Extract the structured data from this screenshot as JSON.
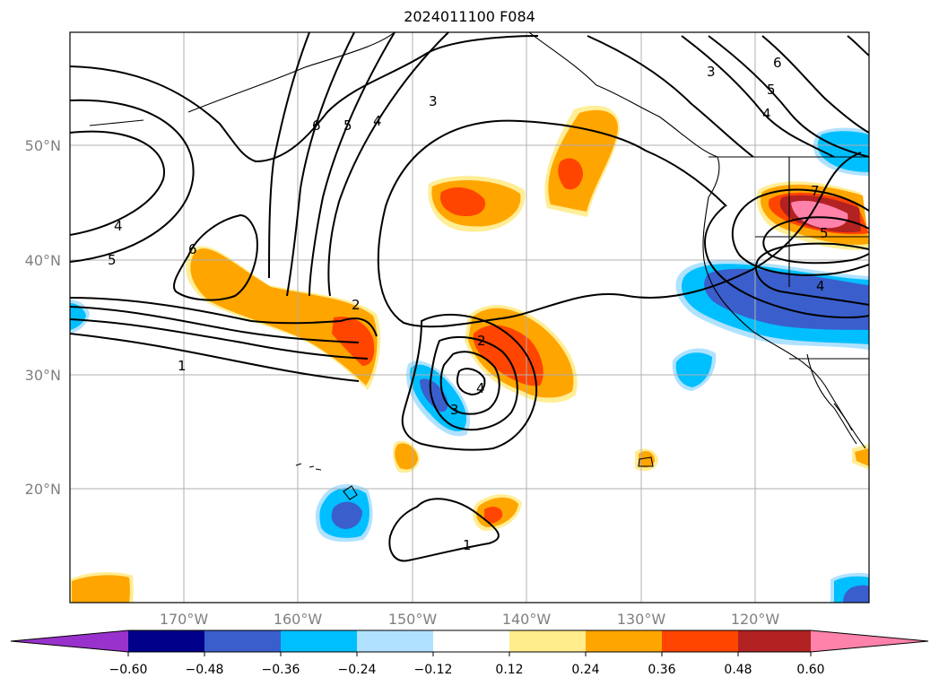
{
  "title": "2024011100 F084",
  "map": {
    "lat_ticks": [
      "50°N",
      "40°N",
      "30°N",
      "20°N"
    ],
    "lon_ticks": [
      "170°W",
      "160°W",
      "150°W",
      "140°W",
      "130°W",
      "120°W"
    ],
    "gridlines": true,
    "coastlines": true
  },
  "colorbar": {
    "ticks": [
      "−0.60",
      "−0.48",
      "−0.36",
      "−0.24",
      "−0.12",
      "0.12",
      "0.24",
      "0.36",
      "0.48",
      "0.60"
    ],
    "colors": [
      "#9932cc",
      "#00008b",
      "#3a5fcd",
      "#00bfff",
      "#b0e2ff",
      "#ffffff",
      "#ffec8b",
      "#ffa500",
      "#ff4500",
      "#b22222",
      "#ff82ab"
    ],
    "extend": "both"
  },
  "contours": {
    "line_color": "#000000",
    "labels": [
      "4",
      "5",
      "6",
      "5",
      "4",
      "3",
      "6",
      "2",
      "1",
      "2",
      "4",
      "3",
      "1",
      "3",
      "6",
      "5",
      "4",
      "7",
      "5",
      "4"
    ]
  }
}
